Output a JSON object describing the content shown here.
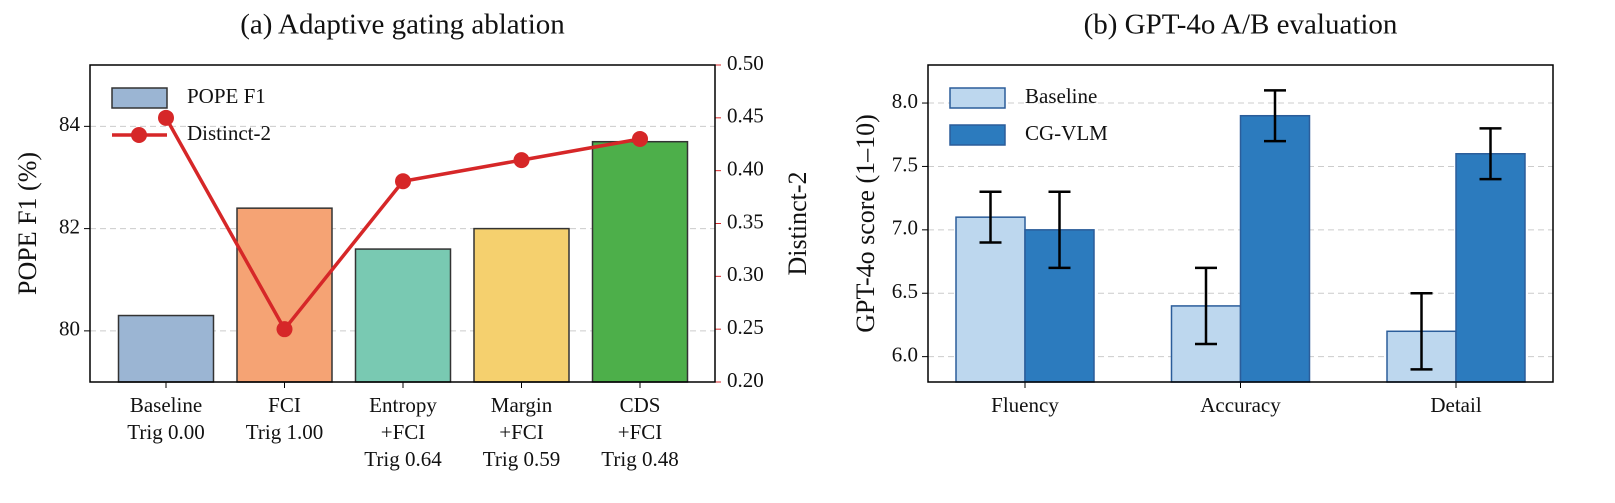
{
  "chart_data": [
    {
      "type": "bar",
      "title": "(a) Adaptive gating ablation",
      "ylabel": "POPE F1 (%)",
      "y2label": "Distinct-2",
      "categories": [
        [
          "Baseline",
          "Trig 0.00"
        ],
        [
          "FCI",
          "Trig 1.00"
        ],
        [
          "Entropy",
          "+FCI",
          "Trig 0.64"
        ],
        [
          "Margin",
          "+FCI",
          "Trig 0.59"
        ],
        [
          "CDS",
          "+FCI",
          "Trig 0.48"
        ]
      ],
      "series": [
        {
          "name": "POPE F1",
          "colors": [
            "#9bb5d3",
            "#f5a374",
            "#79c9b2",
            "#f5d06e",
            "#4daf4a"
          ],
          "values": [
            80.3,
            82.4,
            81.6,
            82.0,
            83.7
          ]
        },
        {
          "name": "Distinct-2",
          "type": "line",
          "axis": "y2",
          "color": "#d62728",
          "values": [
            0.45,
            0.25,
            0.39,
            0.41,
            0.43
          ]
        }
      ],
      "ylim": [
        79,
        85.2
      ],
      "yticks": [
        80,
        82,
        84
      ],
      "y2lim": [
        0.2,
        0.5
      ],
      "y2ticks": [
        {
          "value": 0.2,
          "label": "0.20"
        },
        {
          "value": 0.25,
          "label": "0.25"
        },
        {
          "value": 0.3,
          "label": "0.30"
        },
        {
          "value": 0.35,
          "label": "0.35"
        },
        {
          "value": 0.4,
          "label": "0.40"
        },
        {
          "value": 0.45,
          "label": "0.45"
        },
        {
          "value": 0.5,
          "label": "0.50"
        }
      ],
      "grid": true,
      "legend": "upper left"
    },
    {
      "type": "bar",
      "title": "(b) GPT-4o A/B evaluation",
      "ylabel": "GPT-4o score (1–10)",
      "categories": [
        [
          "Fluency"
        ],
        [
          "Accuracy"
        ],
        [
          "Detail"
        ]
      ],
      "series": [
        {
          "name": "Baseline",
          "color": "#bdd7ee",
          "edge": "#2b5d9a",
          "values": [
            7.1,
            6.4,
            6.2
          ],
          "errors": [
            0.2,
            0.3,
            0.3
          ]
        },
        {
          "name": "CG-VLM",
          "color": "#2c7bbe",
          "edge": "#2b5d9a",
          "values": [
            7.0,
            7.9,
            7.6
          ],
          "errors": [
            0.3,
            0.2,
            0.2
          ]
        }
      ],
      "ylim": [
        5.8,
        8.3
      ],
      "yticks": [
        {
          "value": 6,
          "label": "6.0"
        },
        6.5,
        {
          "value": 7,
          "label": "7.0"
        },
        7.5,
        {
          "value": 8,
          "label": "8.0"
        }
      ],
      "grid": true,
      "legend": "upper left"
    }
  ]
}
